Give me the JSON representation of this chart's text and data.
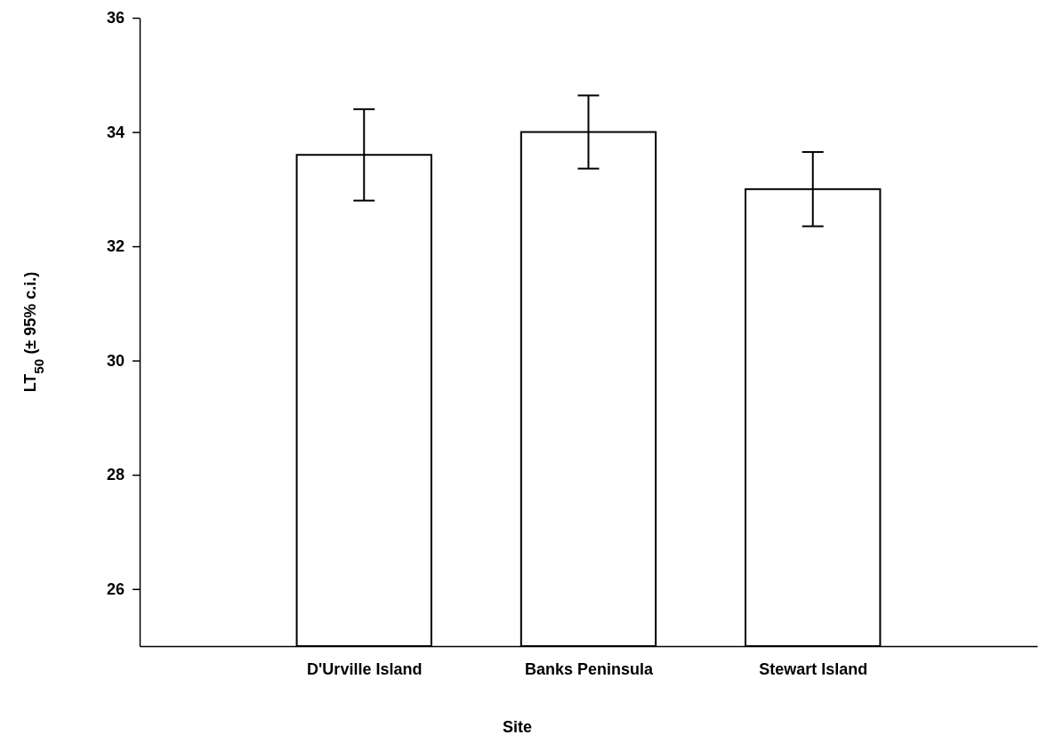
{
  "chart_data": {
    "type": "bar",
    "xlabel": "Site",
    "ylabel": "LT$_{50}$ (± 95% c.i.)",
    "categories": [
      "D'Urville Island",
      "Banks Peninsula",
      "Stewart Island"
    ],
    "values": [
      33.6,
      34.0,
      33.0
    ],
    "errors": [
      0.8,
      0.64,
      0.65
    ],
    "color": "#ffffff",
    "ylim": [
      25,
      36
    ],
    "yticks": [
      26,
      28,
      30,
      32,
      34,
      36
    ],
    "grid": false
  }
}
